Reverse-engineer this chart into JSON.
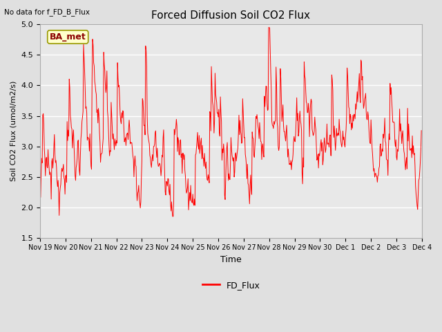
{
  "title": "Forced Diffusion Soil CO2 Flux",
  "xlabel": "Time",
  "ylabel": "Soil CO2 Flux (umol/m2/s)",
  "top_left_text": "No data for f_FD_B_Flux",
  "annotation_text": "BA_met",
  "ylim": [
    1.5,
    5.0
  ],
  "yticks": [
    1.5,
    2.0,
    2.5,
    3.0,
    3.5,
    4.0,
    4.5,
    5.0
  ],
  "line_color": "red",
  "legend_label": "FD_Flux",
  "figure_bg": "#e0e0e0",
  "axes_bg": "#e8e8e8",
  "grid_color": "white",
  "x_tick_labels": [
    "Nov 19",
    "Nov 20",
    "Nov 21",
    "Nov 22",
    "Nov 23",
    "Nov 24",
    "Nov 25",
    "Nov 26",
    "Nov 27",
    "Nov 28",
    "Nov 29",
    "Nov 30",
    "Dec 1",
    "Dec 2",
    "Dec 3",
    "Dec 4"
  ],
  "ann_box_face": "#ffffcc",
  "ann_box_edge": "#999900",
  "ann_text_color": "#8B0000"
}
